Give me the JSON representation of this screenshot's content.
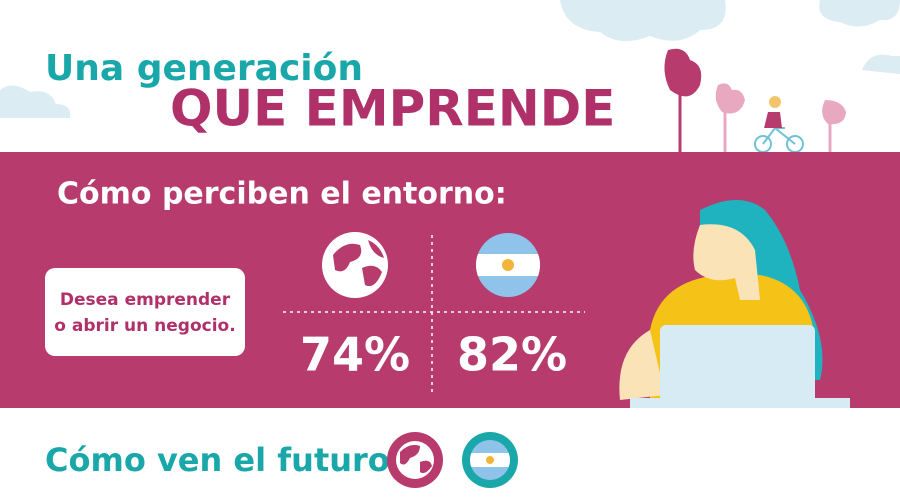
{
  "header": {
    "title_line1": "Una generación",
    "title_line2": "QUE EMPRENDE"
  },
  "section1": {
    "heading": "Cómo perciben el entorno:",
    "label_lines": [
      "Desea emprender",
      "o abrir un negocio."
    ],
    "stats": [
      {
        "name": "Mundo",
        "value": "74%"
      },
      {
        "name": "Argentina",
        "value": "82%"
      }
    ]
  },
  "section2": {
    "heading": "Cómo ven el futuro:"
  }
}
